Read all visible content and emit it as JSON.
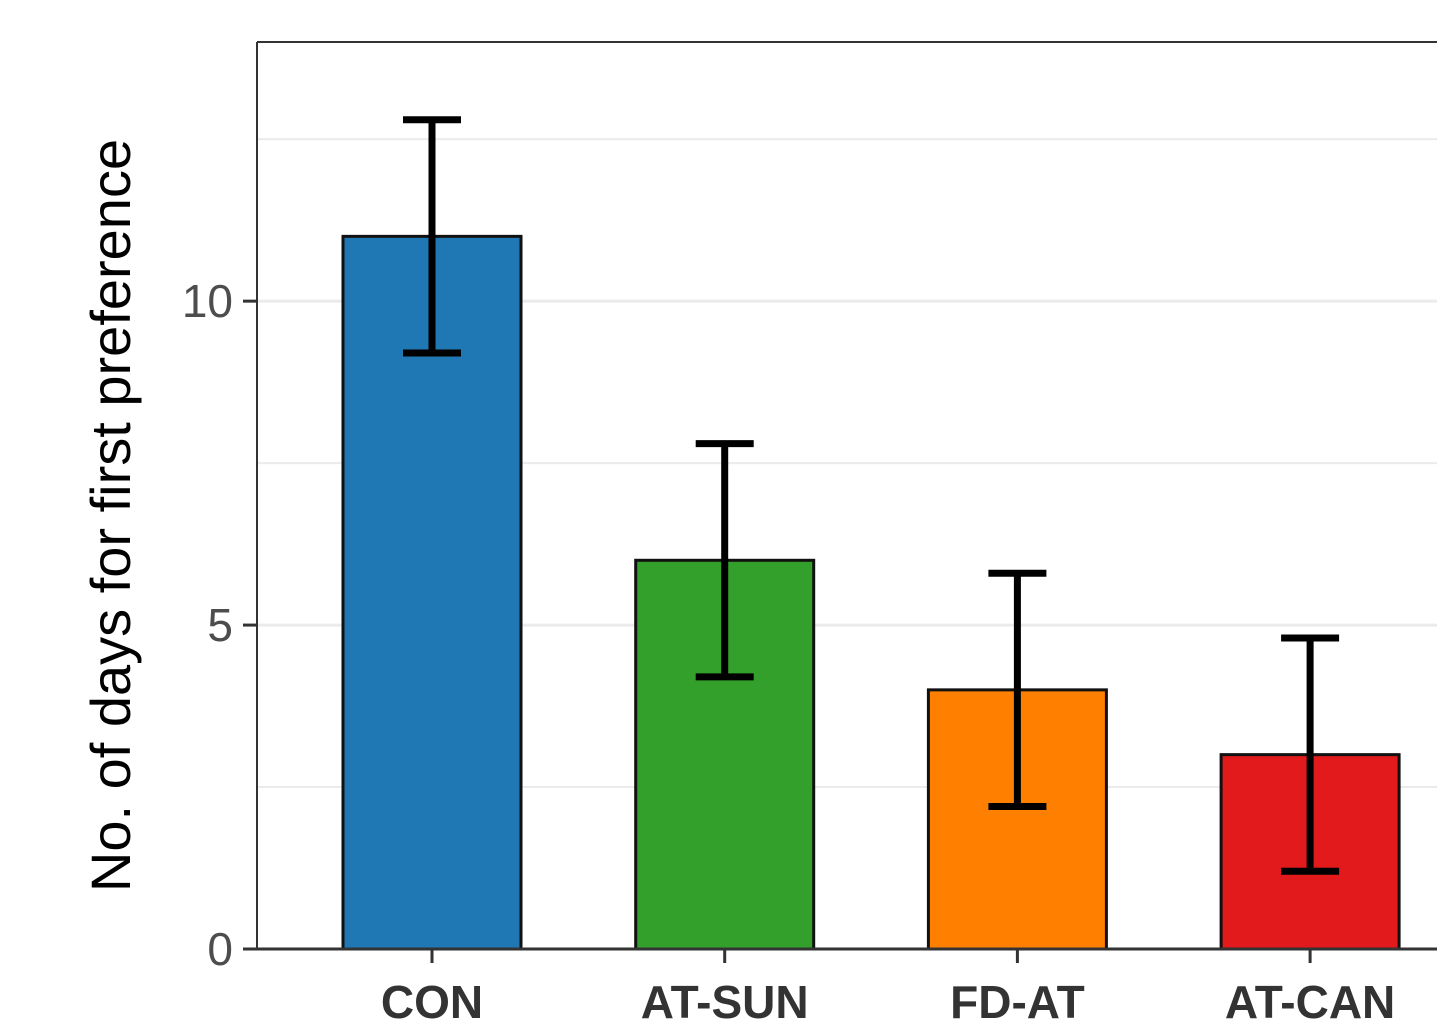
{
  "chart_data": {
    "type": "bar",
    "title": "",
    "xlabel": "",
    "ylabel": "No. of days for first preference",
    "categories": [
      "CON",
      "AT-SUN",
      "FD-AT",
      "AT-CAN"
    ],
    "values": [
      11.0,
      6.0,
      4.0,
      3.0
    ],
    "error_low": [
      9.2,
      4.2,
      2.2,
      1.2
    ],
    "error_high": [
      12.8,
      7.8,
      5.8,
      4.8
    ],
    "bar_colors": [
      "#1f78b4",
      "#33a02c",
      "#ff7f00",
      "#e31a1c"
    ],
    "ylim": [
      0,
      14
    ],
    "yticks": [
      0,
      5,
      10
    ],
    "ytick_labels": [
      "0",
      "5",
      "10"
    ],
    "grid": true
  }
}
